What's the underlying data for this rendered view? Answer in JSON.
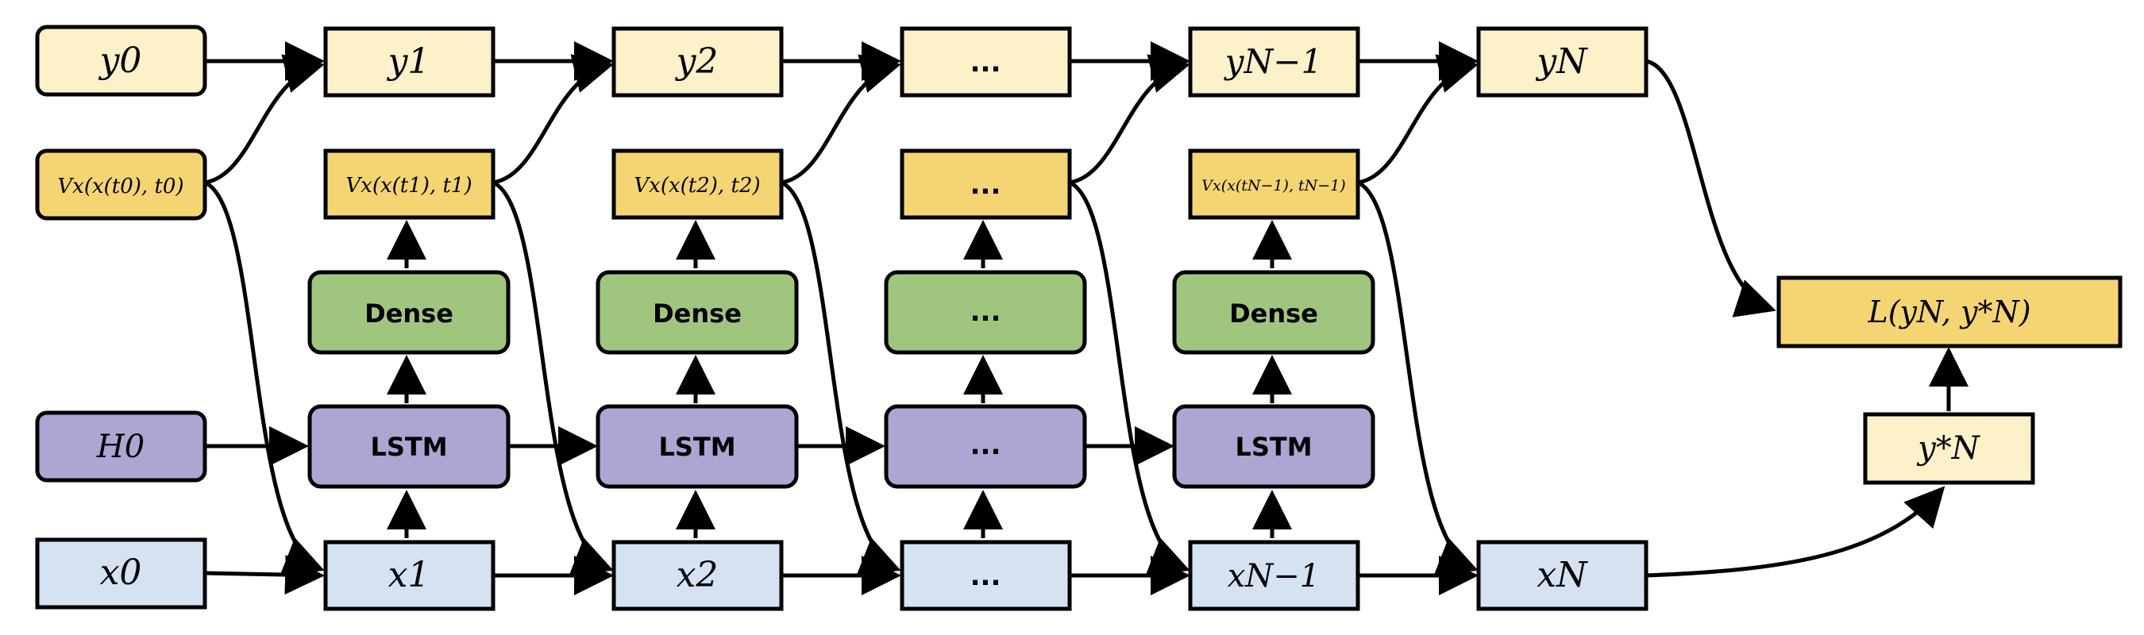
{
  "colors": {
    "output_fill": "#fdf1c9",
    "value_fill": "#f5d573",
    "dense_fill": "#a0c57f",
    "lstm_fill": "#aea5d3",
    "state_fill": "#d4e2f2",
    "loss_fill": "#f5d573",
    "target_fill": "#fdf1c9",
    "stroke": "#000000"
  },
  "row_y": {
    "y0": "y0",
    "y1": "y1",
    "y2": "y2",
    "y_dots": "...",
    "yN1": "yN−1",
    "yN": "yN"
  },
  "row_v": {
    "v0": "Vx(x(t0), t0)",
    "v1": "Vx(x(t1), t1)",
    "v2": "Vx(x(t2), t2)",
    "v_dots": "...",
    "vN1": "Vx(x(tN−1), tN−1)"
  },
  "row_dense": {
    "d1": "Dense",
    "d2": "Dense",
    "d_dots": "...",
    "dN1": "Dense"
  },
  "row_lstm": {
    "h0": "H0",
    "l1": "LSTM",
    "l2": "LSTM",
    "l_dots": "...",
    "lN1": "LSTM"
  },
  "row_x": {
    "x0": "x0",
    "x1": "x1",
    "x2": "x2",
    "x_dots": "...",
    "xN1": "xN−1",
    "xN": "xN"
  },
  "loss": {
    "label": "L(yN, y*N)"
  },
  "target": {
    "label": "y*N"
  }
}
